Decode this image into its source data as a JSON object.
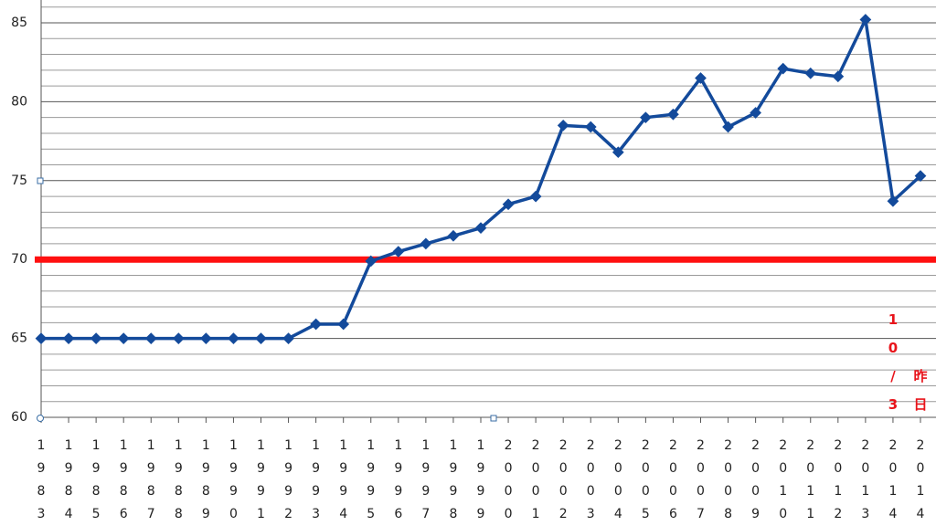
{
  "chart_data": {
    "type": "line",
    "categories": [
      "1983",
      "1984",
      "1985",
      "1986",
      "1987",
      "1988",
      "1989",
      "1990",
      "1991",
      "1992",
      "1993",
      "1994",
      "1995",
      "1996",
      "1997",
      "1998",
      "1999",
      "2000",
      "2001",
      "2002",
      "2003",
      "2004",
      "2005",
      "2006",
      "2007",
      "2008",
      "2009",
      "2010",
      "2011",
      "2012",
      "2013",
      "2014",
      "2014"
    ],
    "series": [
      {
        "color": "#134a9b",
        "values": [
          65,
          65,
          65,
          65,
          65,
          65,
          65,
          65,
          65,
          65,
          65.9,
          65.9,
          69.9,
          70.5,
          71,
          71.5,
          72,
          73.5,
          74,
          78.5,
          78.4,
          76.8,
          79,
          79.2,
          81.5,
          78.4,
          79.3,
          82.1,
          81.8,
          81.6,
          85.2,
          73.7,
          75.3
        ]
      }
    ],
    "ylim": [
      60,
      86.5
    ],
    "yticks": [
      60,
      65,
      70,
      75,
      80,
      85
    ],
    "minor_yticks": [
      61,
      62,
      63,
      64,
      66,
      67,
      68,
      69,
      71,
      72,
      73,
      74,
      76,
      77,
      78,
      79,
      81,
      82,
      83,
      84,
      86
    ],
    "reference_line": {
      "value": 70,
      "color": "#ff1010"
    },
    "annotations": [
      "10/3",
      "昨日"
    ]
  }
}
